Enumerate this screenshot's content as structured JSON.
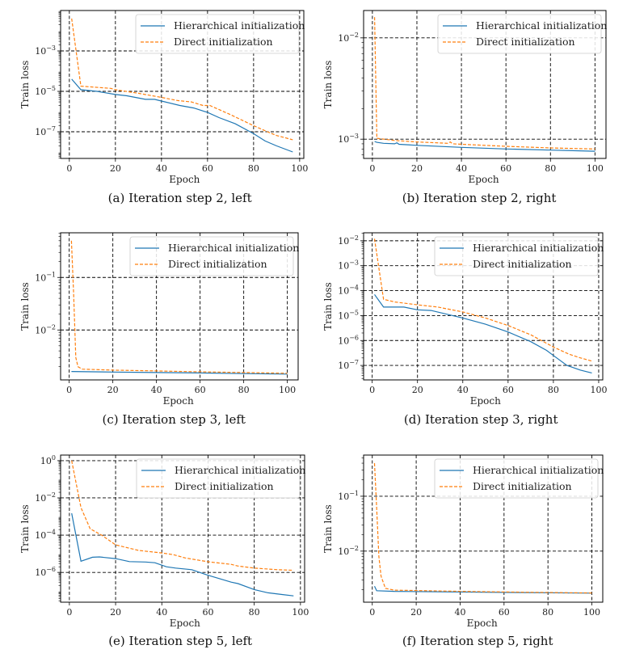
{
  "colors": {
    "hierarchical": "#1f77b4",
    "direct": "#ff7f0e"
  },
  "chart_data": [
    {
      "type": "line",
      "caption": "(a) Iteration step 2, left",
      "xlabel": "Epoch",
      "ylabel": "Train loss",
      "yscale": "log",
      "xlim": [
        -3.8,
        101.8
      ],
      "ylog10lim": [
        -8.32,
        -1.0
      ],
      "xticks": [
        0,
        20,
        40,
        60,
        80,
        100
      ],
      "ytick_exponents": [
        -7,
        -5,
        -3
      ],
      "grid": true,
      "legend": "top-right",
      "series": [
        {
          "name": "Hierarchical initialization",
          "style": "solid",
          "points": [
            [
              1,
              4e-05
            ],
            [
              5,
              1.2e-05
            ],
            [
              12,
              1e-05
            ],
            [
              20,
              7e-06
            ],
            [
              25,
              6e-06
            ],
            [
              33,
              4e-06
            ],
            [
              37,
              4e-06
            ],
            [
              40,
              3.3e-06
            ],
            [
              48,
              2e-06
            ],
            [
              54,
              1.5e-06
            ],
            [
              60,
              9e-07
            ],
            [
              65,
              5e-07
            ],
            [
              72,
              2.5e-07
            ],
            [
              80,
              8e-08
            ],
            [
              85,
              3.5e-08
            ],
            [
              90,
              2e-08
            ],
            [
              97,
              1e-08
            ]
          ]
        },
        {
          "name": "Direct initialization",
          "style": "dashed",
          "points": [
            [
              1,
              0.04
            ],
            [
              5,
              1.8e-05
            ],
            [
              18,
              1.4e-05
            ],
            [
              20,
              1.2e-05
            ],
            [
              30,
              8e-06
            ],
            [
              40,
              5e-06
            ],
            [
              47,
              3.5e-06
            ],
            [
              53,
              3e-06
            ],
            [
              58,
              2e-06
            ],
            [
              61,
              2e-06
            ],
            [
              70,
              7e-07
            ],
            [
              80,
              2e-07
            ],
            [
              86,
              1e-07
            ],
            [
              90,
              6.5e-08
            ],
            [
              97,
              4e-08
            ]
          ]
        }
      ]
    },
    {
      "type": "line",
      "caption": "(b) Iteration step 2, right",
      "xlabel": "Epoch",
      "ylabel": "Train loss",
      "yscale": "log",
      "xlim": [
        -3.95,
        104.95
      ],
      "ylog10lim": [
        -3.19,
        -1.73
      ],
      "xticks": [
        0,
        20,
        40,
        60,
        80,
        100
      ],
      "ytick_exponents": [
        -3,
        -2
      ],
      "grid": true,
      "legend": "top-right",
      "series": [
        {
          "name": "Hierarchical initialization",
          "style": "solid",
          "points": [
            [
              1,
              0.00095
            ],
            [
              2,
              0.00093
            ],
            [
              5,
              0.00091
            ],
            [
              10,
              0.0009
            ],
            [
              11,
              0.00092
            ],
            [
              12,
              0.00089
            ],
            [
              20,
              0.00087
            ],
            [
              40,
              0.00083
            ],
            [
              60,
              0.0008
            ],
            [
              80,
              0.00078
            ],
            [
              100,
              0.00076
            ]
          ]
        },
        {
          "name": "Direct initialization",
          "style": "dashed",
          "points": [
            [
              1,
              0.016
            ],
            [
              2,
              0.00102
            ],
            [
              10,
              0.00097
            ],
            [
              20,
              0.00094
            ],
            [
              34,
              0.00091
            ],
            [
              35,
              0.00094
            ],
            [
              36,
              0.0009
            ],
            [
              40,
              0.00089
            ],
            [
              60,
              0.00085
            ],
            [
              80,
              0.00082
            ],
            [
              100,
              0.0008
            ]
          ]
        }
      ]
    },
    {
      "type": "line",
      "caption": "(c) Iteration step 3, left",
      "xlabel": "Epoch",
      "ylabel": "Train loss",
      "yscale": "log",
      "xlim": [
        -3.95,
        104.95
      ],
      "ylog10lim": [
        -2.95,
        -0.15
      ],
      "xticks": [
        0,
        20,
        40,
        60,
        80,
        100
      ],
      "ytick_exponents": [
        -2,
        -1
      ],
      "grid": true,
      "legend": "top-right",
      "series": [
        {
          "name": "Hierarchical initialization",
          "style": "solid",
          "points": [
            [
              1,
              0.00162
            ],
            [
              20,
              0.00158
            ],
            [
              40,
              0.00155
            ],
            [
              60,
              0.00152
            ],
            [
              80,
              0.00148
            ],
            [
              100,
              0.00145
            ]
          ]
        },
        {
          "name": "Direct initialization",
          "style": "dashed",
          "points": [
            [
              1,
              0.5
            ],
            [
              2,
              0.05
            ],
            [
              3,
              0.003
            ],
            [
              4,
              0.002
            ],
            [
              6,
              0.0018
            ],
            [
              20,
              0.00172
            ],
            [
              40,
              0.00166
            ],
            [
              60,
              0.0016
            ],
            [
              80,
              0.00155
            ],
            [
              100,
              0.0015
            ]
          ]
        }
      ]
    },
    {
      "type": "line",
      "caption": "(d) Iteration step 3, right",
      "xlabel": "Epoch",
      "ylabel": "Train loss",
      "yscale": "log",
      "xlim": [
        -3.8,
        101.8
      ],
      "ylog10lim": [
        -7.58,
        -1.68
      ],
      "xticks": [
        0,
        20,
        40,
        60,
        80,
        100
      ],
      "ytick_exponents": [
        -7,
        -6,
        -5,
        -4,
        -3,
        -2
      ],
      "grid": true,
      "legend": "top-right",
      "series": [
        {
          "name": "Hierarchical initialization",
          "style": "solid",
          "points": [
            [
              1,
              7e-05
            ],
            [
              5,
              2.2e-05
            ],
            [
              14,
              2.2e-05
            ],
            [
              20,
              1.7e-05
            ],
            [
              26,
              1.6e-05
            ],
            [
              40,
              8e-06
            ],
            [
              50,
              4.5e-06
            ],
            [
              60,
              2.2e-06
            ],
            [
              70,
              9e-07
            ],
            [
              77,
              4e-07
            ],
            [
              80,
              2.5e-07
            ],
            [
              86,
              1e-07
            ],
            [
              92,
              6.5e-08
            ],
            [
              97,
              5e-08
            ]
          ]
        },
        {
          "name": "Direct initialization",
          "style": "dashed",
          "points": [
            [
              1,
              0.012
            ],
            [
              5,
              4.5e-05
            ],
            [
              10,
              3.5e-05
            ],
            [
              20,
              2.7e-05
            ],
            [
              29,
              2.2e-05
            ],
            [
              40,
              1.4e-05
            ],
            [
              50,
              8e-06
            ],
            [
              60,
              4e-06
            ],
            [
              70,
              1.7e-06
            ],
            [
              80,
              5.5e-07
            ],
            [
              87,
              2.8e-07
            ],
            [
              92,
              2e-07
            ],
            [
              97,
              1.5e-07
            ]
          ]
        }
      ]
    },
    {
      "type": "line",
      "caption": "(e) Iteration step 5, left",
      "xlabel": "Epoch",
      "ylabel": "Train loss",
      "yscale": "log",
      "xlim": [
        -3.8,
        101.8
      ],
      "ylog10lim": [
        -7.6,
        0.3
      ],
      "xticks": [
        0,
        20,
        40,
        60,
        80,
        100
      ],
      "ytick_exponents": [
        -6,
        -4,
        -2,
        0
      ],
      "grid": true,
      "legend": "top-right",
      "series": [
        {
          "name": "Hierarchical initialization",
          "style": "solid",
          "points": [
            [
              1,
              0.0015
            ],
            [
              5,
              4e-06
            ],
            [
              10,
              6.5e-06
            ],
            [
              13,
              6.8e-06
            ],
            [
              20,
              5.5e-06
            ],
            [
              26,
              3.8e-06
            ],
            [
              33,
              3.6e-06
            ],
            [
              37,
              3.3e-06
            ],
            [
              42,
              2e-06
            ],
            [
              46,
              1.7e-06
            ],
            [
              53,
              1.4e-06
            ],
            [
              60,
              7e-07
            ],
            [
              70,
              3e-07
            ],
            [
              73,
              2.5e-07
            ],
            [
              80,
              1.2e-07
            ],
            [
              86,
              8e-08
            ],
            [
              92,
              6.5e-08
            ],
            [
              97,
              5.5e-08
            ]
          ]
        },
        {
          "name": "Direct initialization",
          "style": "dashed",
          "points": [
            [
              1,
              1.0
            ],
            [
              5,
              0.003
            ],
            [
              9,
              0.00022
            ],
            [
              14,
              0.0001
            ],
            [
              20,
              3e-05
            ],
            [
              30,
              1.5e-05
            ],
            [
              40,
              1.1e-05
            ],
            [
              45,
              9e-06
            ],
            [
              50,
              6e-06
            ],
            [
              60,
              3.7e-06
            ],
            [
              70,
              2.7e-06
            ],
            [
              73,
              2.2e-06
            ],
            [
              80,
              1.7e-06
            ],
            [
              90,
              1.4e-06
            ],
            [
              97,
              1.3e-06
            ]
          ]
        }
      ]
    },
    {
      "type": "line",
      "caption": "(f) Iteration step 5, right",
      "xlabel": "Epoch",
      "ylabel": "Train loss",
      "yscale": "log",
      "xlim": [
        -3.95,
        104.95
      ],
      "ylog10lim": [
        -2.93,
        -0.25
      ],
      "xticks": [
        0,
        20,
        40,
        60,
        80,
        100
      ],
      "ytick_exponents": [
        -2,
        -1
      ],
      "grid": true,
      "legend": "top-right",
      "series": [
        {
          "name": "Hierarchical initialization",
          "style": "solid",
          "points": [
            [
              1,
              0.0023
            ],
            [
              2,
              0.0019
            ],
            [
              10,
              0.00185
            ],
            [
              40,
              0.0018
            ],
            [
              70,
              0.00176
            ],
            [
              100,
              0.00172
            ]
          ]
        },
        {
          "name": "Direct initialization",
          "style": "dashed",
          "points": [
            [
              1,
              0.4
            ],
            [
              2,
              0.06
            ],
            [
              3,
              0.008
            ],
            [
              4,
              0.0035
            ],
            [
              6,
              0.0021
            ],
            [
              10,
              0.00195
            ],
            [
              40,
              0.00185
            ],
            [
              70,
              0.00178
            ],
            [
              100,
              0.00173
            ]
          ]
        }
      ]
    }
  ]
}
